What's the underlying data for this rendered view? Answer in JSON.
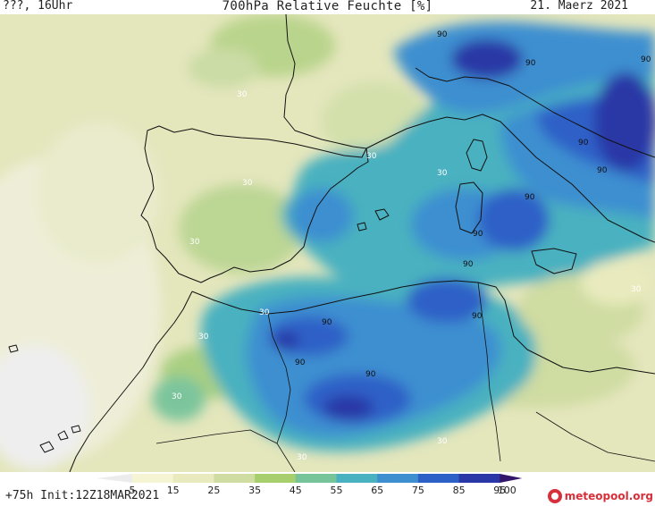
{
  "header": {
    "left": "???, 16Uhr",
    "title": "700hPa Relative Feuchte [%]",
    "right": "21. Maerz 2021"
  },
  "map": {
    "contour_labels": [
      "90",
      "90",
      "90",
      "90",
      "90",
      "90",
      "90",
      "90",
      "90",
      "90",
      "90",
      "90",
      "30",
      "30",
      "30",
      "30",
      "30",
      "30",
      "30",
      "30",
      "30",
      "30",
      "30"
    ]
  },
  "colorbar": {
    "ticks": [
      "5",
      "15",
      "25",
      "35",
      "45",
      "55",
      "65",
      "75",
      "85",
      "95",
      "100"
    ],
    "colors": [
      "#ececec",
      "#f5f5d3",
      "#e9ebbe",
      "#cfdca2",
      "#a8cf6d",
      "#78c49a",
      "#4ab1c0",
      "#3d8fd0",
      "#2d60c7",
      "#2a37a6",
      "#33156b"
    ]
  },
  "footer": {
    "text": "+75h Init:12Z18MAR2021"
  },
  "logo": {
    "text": "meteopool.org",
    "icon": "meteopool-logo-icon"
  }
}
